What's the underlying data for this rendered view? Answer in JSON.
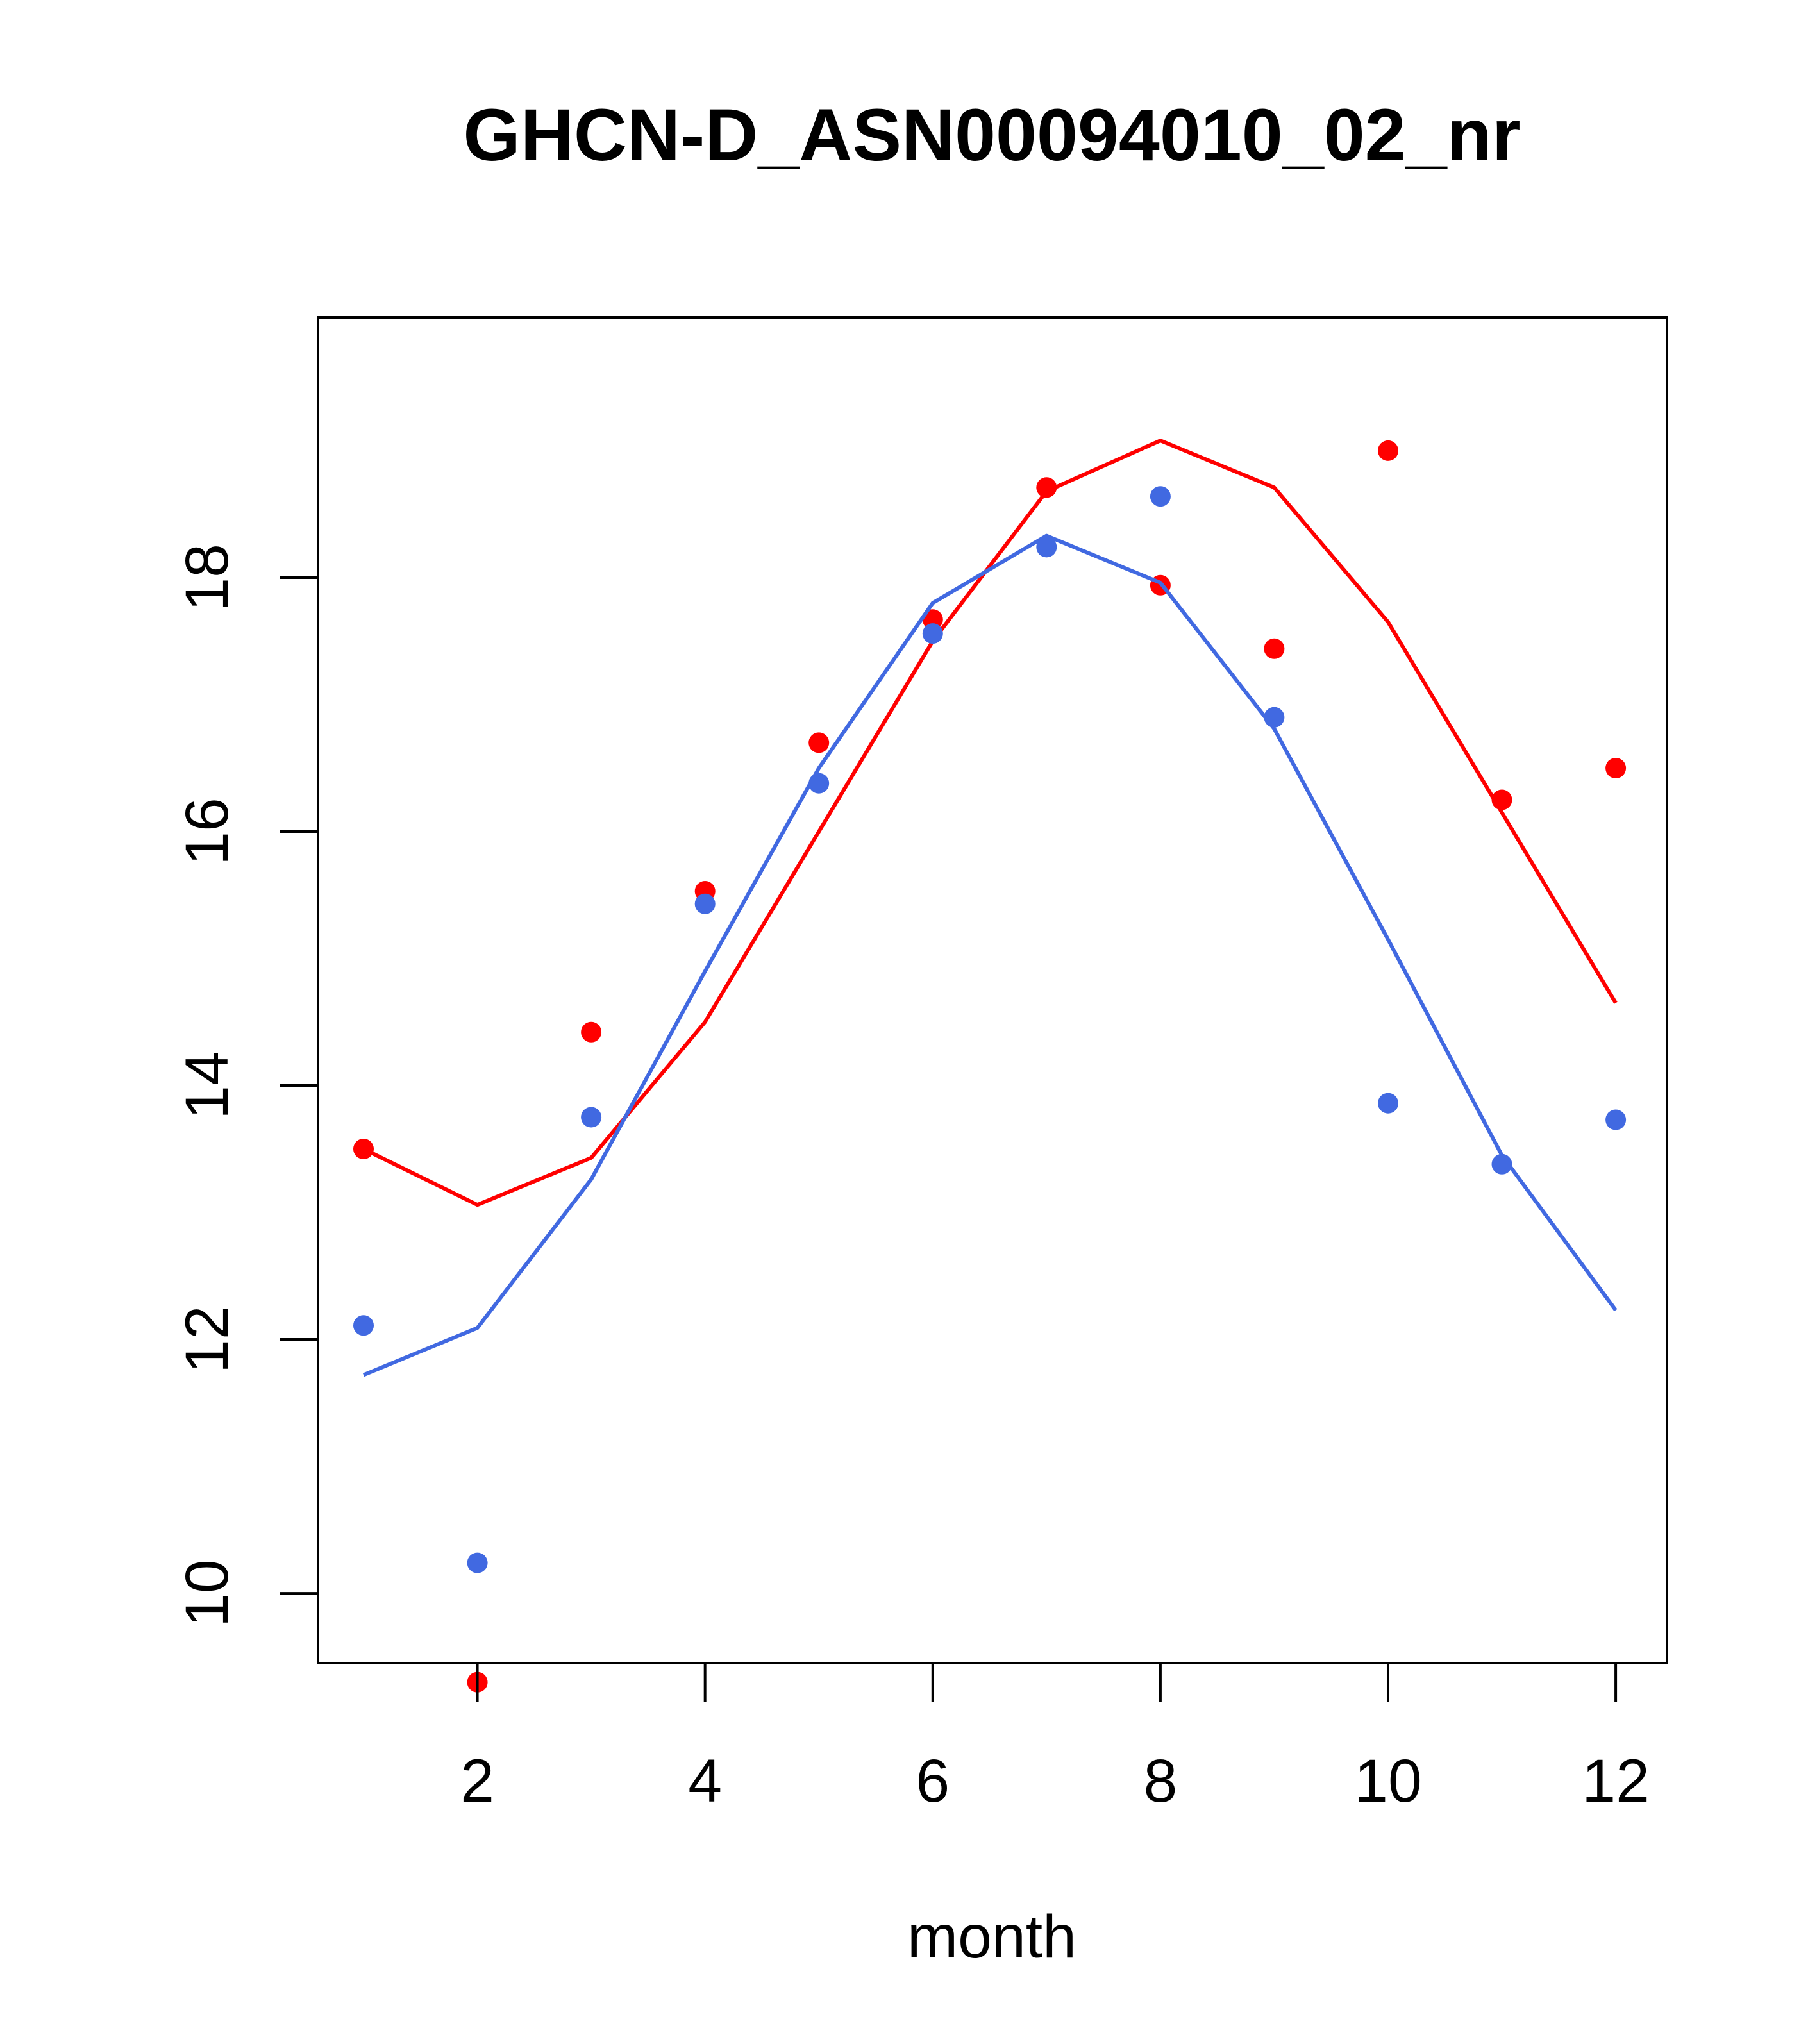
{
  "chart_data": {
    "type": "line",
    "title": "GHCN-D_ASN00094010_02_nr",
    "xlabel": "month",
    "ylabel": "",
    "xlim": [
      0.6,
      12.45
    ],
    "ylim": [
      9.45,
      20.05
    ],
    "xticks": [
      2,
      4,
      6,
      8,
      10,
      12
    ],
    "yticks": [
      10,
      12,
      14,
      16,
      18
    ],
    "grid": false,
    "x": [
      1,
      2,
      3,
      4,
      5,
      6,
      7,
      8,
      9,
      10,
      11,
      12
    ],
    "series": [
      {
        "color": "#ff0000",
        "points": [
          13.5,
          9.3,
          14.42,
          15.53,
          16.7,
          17.67,
          18.71,
          17.94,
          17.44,
          19.0,
          16.25,
          16.5
        ],
        "line": [
          13.5,
          13.06,
          13.43,
          14.5,
          16.0,
          17.5,
          18.68,
          19.08,
          18.71,
          17.65,
          16.15,
          14.65
        ]
      },
      {
        "color": "#4169e1",
        "points": [
          12.11,
          10.24,
          13.75,
          15.43,
          16.38,
          17.56,
          18.24,
          18.64,
          16.9,
          13.86,
          13.38,
          13.73
        ],
        "line": [
          11.72,
          12.09,
          13.26,
          14.9,
          16.5,
          17.8,
          18.33,
          17.96,
          16.81,
          15.15,
          13.45,
          12.23
        ]
      }
    ]
  }
}
